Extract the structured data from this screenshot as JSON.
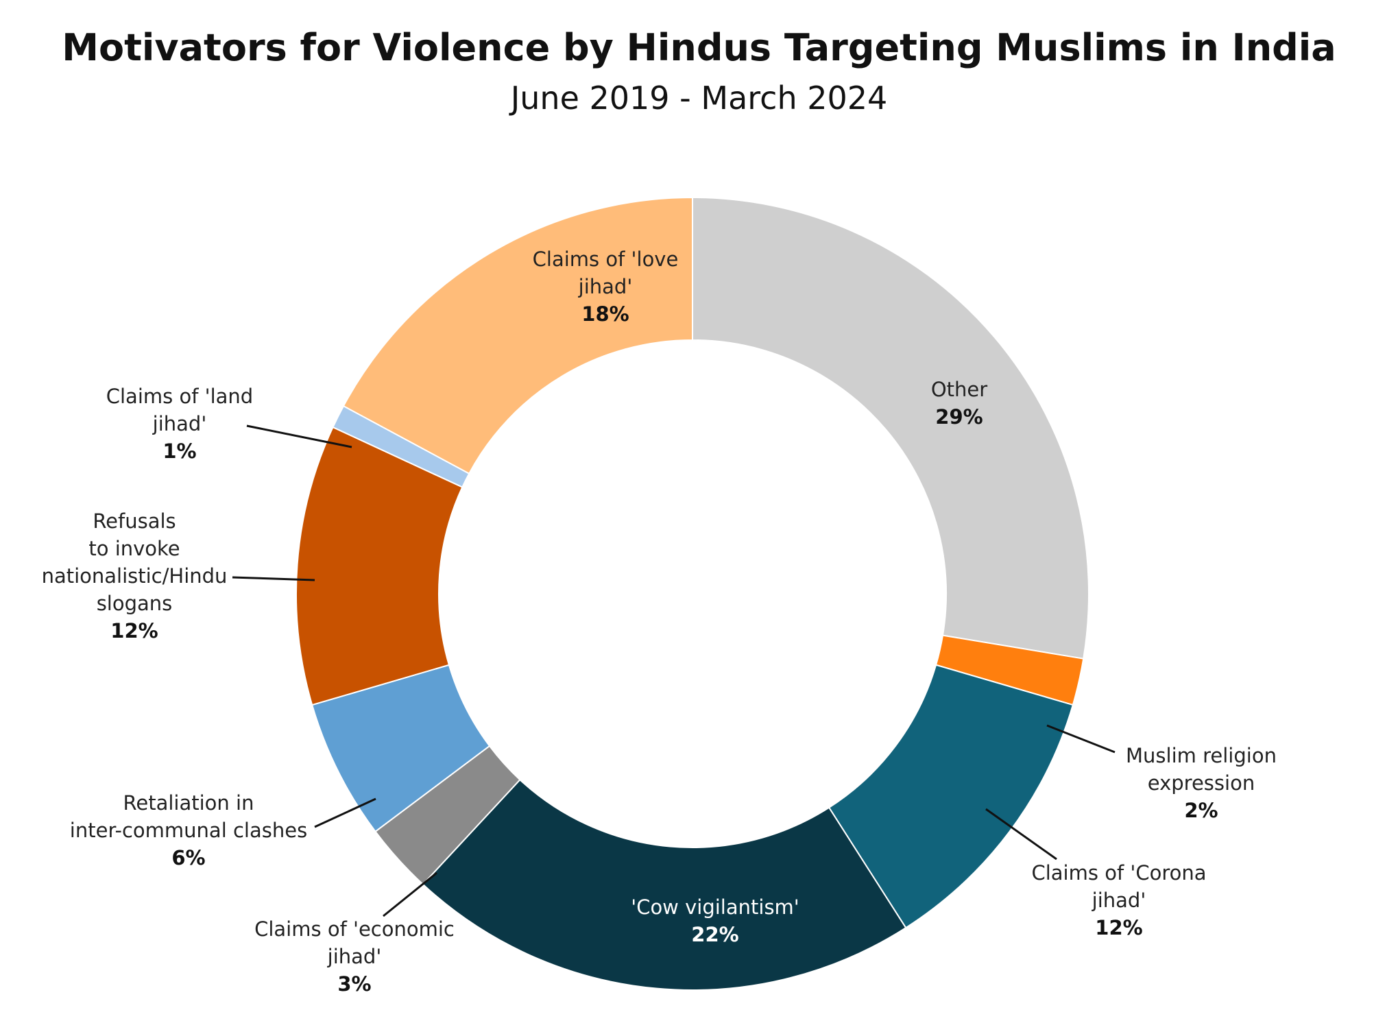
{
  "chart_data": {
    "type": "pie",
    "donut": true,
    "title": "Motivators for Violence by Hindus Targeting Muslims in India",
    "subtitle": "June 2019 - March 2024",
    "slices": [
      {
        "label": "Other",
        "value": 29,
        "value_label": "29%",
        "color": "#cfcfcf"
      },
      {
        "label": "Muslim religion expression",
        "value": 2,
        "value_label": "2%",
        "color": "#ff7f0e"
      },
      {
        "label": "Claims of 'Corona jihad'",
        "value": 12,
        "value_label": "12%",
        "color": "#11637b"
      },
      {
        "label": "'Cow vigilantism'",
        "value": 22,
        "value_label": "22%",
        "color": "#0a3746"
      },
      {
        "label": "Claims of 'economic jihad'",
        "value": 3,
        "value_label": "3%",
        "color": "#8a8a8a"
      },
      {
        "label": "Retaliation in inter-communal clashes",
        "value": 6,
        "value_label": "6%",
        "color": "#5f9fd3"
      },
      {
        "label": "Refusals to invoke nationalistic/Hindu slogans",
        "value": 12,
        "value_label": "12%",
        "color": "#c85200"
      },
      {
        "label": "Claims of 'land jihad'",
        "value": 1,
        "value_label": "1%",
        "color": "#a7c9ec"
      },
      {
        "label": "Claims of 'love jihad'",
        "value": 18,
        "value_label": "18%",
        "color": "#ffbc79"
      }
    ],
    "label_lines": [
      [
        "Other"
      ],
      [
        "Muslim religion",
        "expression"
      ],
      [
        "Claims of 'Corona",
        "jihad'"
      ],
      [
        "'Cow vigilantism'"
      ],
      [
        "Claims of 'economic",
        "jihad'"
      ],
      [
        "Retaliation in",
        "inter-communal clashes"
      ],
      [
        "Refusals",
        "to invoke",
        "nationalistic/Hindu",
        "slogans"
      ],
      [
        "Claims of 'land",
        "jihad'"
      ],
      [
        "Claims of 'love",
        "jihad'"
      ]
    ]
  }
}
